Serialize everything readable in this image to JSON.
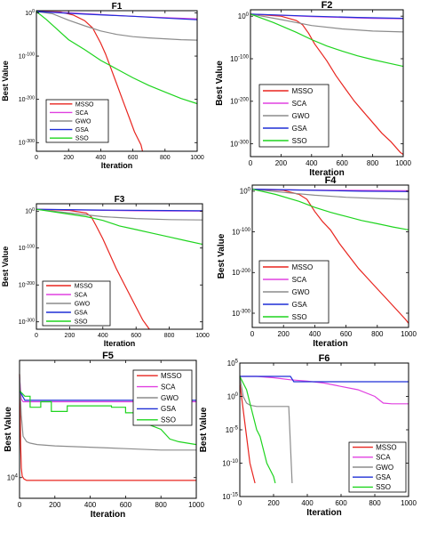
{
  "chart_data": [
    {
      "type": "line",
      "title": "F1",
      "xlabel": "Iteration",
      "ylabel": "Best Value",
      "xlim": [
        0,
        1000
      ],
      "yscale": "log",
      "ylim_exp": [
        -320,
        5
      ],
      "xticks": [
        "0",
        "200",
        "400",
        "600",
        "800",
        "1000"
      ],
      "yticks": [
        {
          "exp": 0,
          "label": "10^0"
        },
        {
          "exp": -100,
          "label": "10^-100"
        },
        {
          "exp": -200,
          "label": "10^-200"
        },
        {
          "exp": -300,
          "label": "10^-300"
        }
      ],
      "legend_position": "bottom-left",
      "series": [
        {
          "name": "MSSO",
          "color": "#e8251f",
          "x": [
            0,
            150,
            230,
            300,
            350,
            400,
            430,
            460,
            500,
            540,
            580,
            610,
            630,
            650,
            660
          ],
          "y_exp": [
            3,
            2,
            -5,
            -18,
            -35,
            -70,
            -95,
            -125,
            -165,
            -205,
            -245,
            -275,
            -290,
            -305,
            -320
          ]
        },
        {
          "name": "SCA",
          "color": "#e040e0",
          "x": [
            0,
            200,
            400,
            600,
            800,
            1000
          ],
          "y_exp": [
            3,
            0,
            -4,
            -8,
            -11,
            -14
          ]
        },
        {
          "name": "GWO",
          "color": "#8c8c8c",
          "x": [
            0,
            100,
            200,
            300,
            400,
            500,
            600,
            700,
            800,
            900,
            1000
          ],
          "y_exp": [
            3,
            -2,
            -17,
            -30,
            -42,
            -50,
            -55,
            -58,
            -60,
            -62,
            -63
          ]
        },
        {
          "name": "GSA",
          "color": "#1f2fd6",
          "x": [
            0,
            300,
            600,
            800,
            1000
          ],
          "y_exp": [
            3,
            -3,
            -8,
            -12,
            -16
          ]
        },
        {
          "name": "SSO",
          "color": "#1ed41e",
          "x": [
            0,
            60,
            120,
            200,
            300,
            400,
            500,
            600,
            700,
            800,
            900,
            1000
          ],
          "y_exp": [
            3,
            -15,
            -35,
            -62,
            -85,
            -110,
            -130,
            -150,
            -168,
            -183,
            -198,
            -210
          ]
        }
      ]
    },
    {
      "type": "line",
      "title": "F2",
      "xlabel": "Iteration",
      "ylabel": "Best Value",
      "xlim": [
        0,
        1000
      ],
      "yscale": "log",
      "ylim_exp": [
        -330,
        15
      ],
      "xticks": [
        "0",
        "200",
        "400",
        "600",
        "800",
        "1000"
      ],
      "yticks": [
        {
          "exp": 0,
          "label": "10^0"
        },
        {
          "exp": -100,
          "label": "10^-100"
        },
        {
          "exp": -200,
          "label": "10^-200"
        },
        {
          "exp": -300,
          "label": "10^-300"
        }
      ],
      "legend_position": "bottom-left",
      "series": [
        {
          "name": "MSSO",
          "color": "#e8251f",
          "x": [
            0,
            200,
            300,
            340,
            380,
            420,
            460,
            500,
            560,
            620,
            680,
            740,
            800,
            860,
            920,
            980,
            1000
          ],
          "y_exp": [
            5,
            0,
            -10,
            -20,
            -40,
            -65,
            -85,
            -105,
            -140,
            -170,
            -200,
            -225,
            -250,
            -275,
            -295,
            -320,
            -325
          ]
        },
        {
          "name": "SCA",
          "color": "#e040e0",
          "x": [
            0,
            200,
            400,
            600,
            800,
            1000
          ],
          "y_exp": [
            5,
            2,
            -1,
            -3,
            -5,
            -6
          ]
        },
        {
          "name": "GWO",
          "color": "#8c8c8c",
          "x": [
            0,
            200,
            400,
            600,
            800,
            1000
          ],
          "y_exp": [
            5,
            -8,
            -22,
            -30,
            -35,
            -37
          ]
        },
        {
          "name": "GSA",
          "color": "#1f2fd6",
          "x": [
            0,
            400,
            700,
            1000
          ],
          "y_exp": [
            5,
            0,
            -3,
            -5
          ]
        },
        {
          "name": "SSO",
          "color": "#1ed41e",
          "x": [
            0,
            150,
            300,
            400,
            500,
            600,
            700,
            800,
            900,
            1000
          ],
          "y_exp": [
            5,
            -15,
            -38,
            -55,
            -70,
            -82,
            -93,
            -102,
            -110,
            -118
          ]
        }
      ]
    },
    {
      "type": "line",
      "title": "F3",
      "xlabel": "Iteration",
      "ylabel": "Best Value",
      "xlim": [
        0,
        1000
      ],
      "yscale": "log",
      "ylim_exp": [
        -320,
        20
      ],
      "xticks": [
        "0",
        "200",
        "400",
        "600",
        "800",
        "1000"
      ],
      "yticks": [
        {
          "exp": 0,
          "label": "10^0"
        },
        {
          "exp": -100,
          "label": "10^-100"
        },
        {
          "exp": -200,
          "label": "10^-200"
        },
        {
          "exp": -300,
          "label": "10^-300"
        }
      ],
      "legend_position": "bottom-left",
      "series": [
        {
          "name": "MSSO",
          "color": "#e8251f",
          "x": [
            0,
            200,
            300,
            330,
            360,
            400,
            440,
            480,
            520,
            560,
            600,
            640,
            680
          ],
          "y_exp": [
            5,
            2,
            -5,
            -15,
            -40,
            -75,
            -115,
            -155,
            -190,
            -225,
            -260,
            -295,
            -320
          ]
        },
        {
          "name": "SCA",
          "color": "#e040e0",
          "x": [
            0,
            300,
            600,
            1000
          ],
          "y_exp": [
            5,
            3,
            1,
            0
          ]
        },
        {
          "name": "GWO",
          "color": "#8c8c8c",
          "x": [
            0,
            200,
            400,
            600,
            800,
            1000
          ],
          "y_exp": [
            5,
            -5,
            -15,
            -20,
            -23,
            -24
          ]
        },
        {
          "name": "GSA",
          "color": "#1f2fd6",
          "x": [
            0,
            400,
            700,
            1000
          ],
          "y_exp": [
            5,
            3,
            2,
            1
          ]
        },
        {
          "name": "SSO",
          "color": "#1ed41e",
          "x": [
            0,
            150,
            300,
            400,
            500,
            600,
            700,
            800,
            900,
            1000
          ],
          "y_exp": [
            5,
            -5,
            -15,
            -25,
            -40,
            -50,
            -60,
            -70,
            -80,
            -90
          ]
        }
      ]
    },
    {
      "type": "line",
      "title": "F4",
      "xlabel": "Iteration",
      "ylabel": "Best Value",
      "xlim": [
        0,
        1000
      ],
      "yscale": "log",
      "ylim_exp": [
        -335,
        15
      ],
      "xticks": [
        "0",
        "200",
        "400",
        "600",
        "800",
        "1000"
      ],
      "yticks": [
        {
          "exp": 0,
          "label": "10^0"
        },
        {
          "exp": -100,
          "label": "10^-100"
        },
        {
          "exp": -200,
          "label": "10^-200"
        },
        {
          "exp": -300,
          "label": "10^-300"
        }
      ],
      "legend_position": "bottom-left",
      "series": [
        {
          "name": "MSSO",
          "color": "#e8251f",
          "x": [
            0,
            200,
            300,
            350,
            400,
            450,
            500,
            560,
            620,
            680,
            740,
            800,
            860,
            920,
            980,
            1000
          ],
          "y_exp": [
            5,
            2,
            -8,
            -20,
            -50,
            -75,
            -95,
            -130,
            -160,
            -190,
            -215,
            -240,
            -265,
            -290,
            -315,
            -325
          ]
        },
        {
          "name": "SCA",
          "color": "#e040e0",
          "x": [
            0,
            300,
            600,
            1000
          ],
          "y_exp": [
            5,
            3,
            2,
            1
          ]
        },
        {
          "name": "GWO",
          "color": "#8c8c8c",
          "x": [
            0,
            200,
            400,
            600,
            800,
            1000
          ],
          "y_exp": [
            5,
            -3,
            -10,
            -15,
            -18,
            -20
          ]
        },
        {
          "name": "GSA",
          "color": "#1f2fd6",
          "x": [
            0,
            400,
            700,
            1000
          ],
          "y_exp": [
            5,
            2,
            0,
            -1
          ]
        },
        {
          "name": "SSO",
          "color": "#1ed41e",
          "x": [
            0,
            150,
            300,
            400,
            500,
            600,
            700,
            800,
            900,
            1000
          ],
          "y_exp": [
            5,
            -8,
            -25,
            -40,
            -52,
            -62,
            -72,
            -80,
            -88,
            -95
          ]
        }
      ]
    },
    {
      "type": "line",
      "title": "F5",
      "xlabel": "Iteration",
      "ylabel": "Best Value",
      "xlim": [
        0,
        1000
      ],
      "ylim": [
        0,
        100
      ],
      "xticks": [
        "0",
        "200",
        "400",
        "600",
        "800",
        "1000"
      ],
      "yticks": [
        {
          "value": 15,
          "label": "10^4"
        }
      ],
      "legend_position": "top-right",
      "series": [
        {
          "name": "MSSO",
          "color": "#e8251f",
          "x": [
            0,
            3,
            6,
            10,
            15,
            25,
            40,
            1000
          ],
          "y": [
            90,
            70,
            40,
            22,
            16,
            14,
            13,
            13
          ]
        },
        {
          "name": "SCA",
          "color": "#e040e0",
          "x": [
            0,
            10,
            20,
            30,
            1000
          ],
          "y": [
            88,
            72,
            70,
            70,
            70
          ]
        },
        {
          "name": "GWO",
          "color": "#8c8c8c",
          "x": [
            0,
            10,
            20,
            40,
            60,
            100,
            200,
            400,
            600,
            800,
            1000
          ],
          "y": [
            90,
            60,
            45,
            41,
            40,
            39,
            38,
            37,
            36,
            35,
            35
          ]
        },
        {
          "name": "GSA",
          "color": "#1f2fd6",
          "x": [
            0,
            30,
            1000
          ],
          "y": [
            78,
            71,
            71
          ]
        },
        {
          "name": "SSO",
          "color": "#1ed41e",
          "x": [
            0,
            30,
            60,
            60,
            120,
            120,
            180,
            180,
            270,
            270,
            520,
            520,
            600,
            600,
            700,
            700,
            800,
            850,
            900,
            950,
            1000
          ],
          "y": [
            78,
            74,
            74,
            66,
            66,
            70,
            70,
            63,
            63,
            67,
            67,
            66,
            66,
            62,
            62,
            55,
            50,
            43,
            41,
            40,
            39
          ]
        }
      ]
    },
    {
      "type": "line",
      "title": "F6",
      "xlabel": "Iteration",
      "ylabel": "Best Value",
      "xlim": [
        0,
        1000
      ],
      "yscale": "log",
      "ylim_exp": [
        -15,
        5
      ],
      "xticks": [
        "0",
        "200",
        "400",
        "600",
        "800",
        "1000"
      ],
      "yticks": [
        {
          "exp": 5,
          "label": "10^5"
        },
        {
          "exp": 0,
          "label": "10^0"
        },
        {
          "exp": -5,
          "label": "10^-5"
        },
        {
          "exp": -10,
          "label": "10^-10"
        },
        {
          "exp": -15,
          "label": "10^-15"
        }
      ],
      "legend_position": "bottom-right",
      "series": [
        {
          "name": "MSSO",
          "color": "#e8251f",
          "x": [
            0,
            10,
            20,
            30,
            40,
            50,
            60,
            70,
            80,
            90
          ],
          "y_exp": [
            2,
            0,
            -2,
            -4,
            -6,
            -8,
            -10,
            -11,
            -12,
            -13
          ]
        },
        {
          "name": "SCA",
          "color": "#e040e0",
          "x": [
            0,
            100,
            200,
            300,
            400,
            500,
            600,
            700,
            800,
            850,
            900,
            1000
          ],
          "y_exp": [
            3,
            3,
            2.8,
            2.5,
            2.3,
            2,
            1.5,
            1,
            0,
            -1,
            -1.1,
            -1.1
          ]
        },
        {
          "name": "GWO",
          "color": "#8c8c8c",
          "x": [
            0,
            20,
            40,
            60,
            100,
            150,
            200,
            250,
            290,
            310
          ],
          "y_exp": [
            3,
            0,
            -1,
            -1.3,
            -1.5,
            -1.5,
            -1.5,
            -1.5,
            -1.5,
            -13
          ]
        },
        {
          "name": "GSA",
          "color": "#1f2fd6",
          "x": [
            0,
            100,
            200,
            300,
            320,
            1000
          ],
          "y_exp": [
            3,
            3,
            3,
            3,
            2.2,
            2.2
          ]
        },
        {
          "name": "SSO",
          "color": "#1ed41e",
          "x": [
            0,
            40,
            60,
            80,
            100,
            120,
            140,
            160,
            180,
            200,
            210
          ],
          "y_exp": [
            3,
            1,
            -1,
            -3,
            -5,
            -6,
            -8,
            -10,
            -11,
            -12,
            -13
          ]
        }
      ]
    }
  ]
}
